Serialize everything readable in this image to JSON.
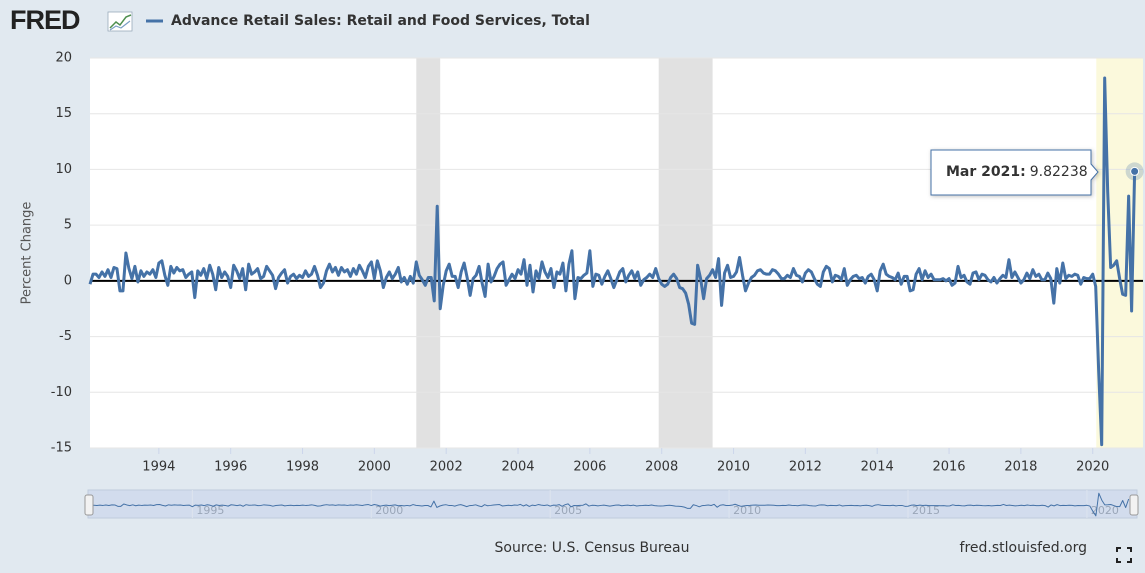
{
  "logo": "FRED",
  "chart_data": {
    "type": "line",
    "title": "Advance Retail Sales: Retail and Food Services, Total",
    "y_label": "Percent Change",
    "source": "Source: U.S. Census Bureau",
    "credit": "fred.stlouisfed.org",
    "annotation": {
      "text": "Mar 2021:",
      "point": 349
    },
    "xlim": [
      1992.083,
      2021.4
    ],
    "xticks": [
      1994,
      1996,
      1998,
      2000,
      2002,
      2004,
      2006,
      2008,
      2010,
      2012,
      2014,
      2016,
      2018,
      2020
    ],
    "ylim": [
      -15,
      20
    ],
    "yticks": [
      -15,
      -10,
      -5,
      0,
      5,
      10,
      15,
      20
    ],
    "grid": true,
    "recessions": [
      [
        2001.167,
        2001.833
      ],
      [
        2007.917,
        2009.417
      ]
    ],
    "highlight": [
      2020.1,
      2021.4
    ],
    "navigator_ticks": [
      1995,
      2000,
      2005,
      2010,
      2015,
      2020
    ],
    "x": [
      1992.083,
      1992.167,
      1992.25,
      1992.333,
      1992.417,
      1992.5,
      1992.583,
      1992.667,
      1992.75,
      1992.833,
      1992.917,
      1993,
      1993.083,
      1993.167,
      1993.25,
      1993.333,
      1993.417,
      1993.5,
      1993.583,
      1993.667,
      1993.75,
      1993.833,
      1993.917,
      1994,
      1994.083,
      1994.167,
      1994.25,
      1994.333,
      1994.417,
      1994.5,
      1994.583,
      1994.667,
      1994.75,
      1994.833,
      1994.917,
      1995,
      1995.083,
      1995.167,
      1995.25,
      1995.333,
      1995.417,
      1995.5,
      1995.583,
      1995.667,
      1995.75,
      1995.833,
      1995.917,
      1996,
      1996.083,
      1996.167,
      1996.25,
      1996.333,
      1996.417,
      1996.5,
      1996.583,
      1996.667,
      1996.75,
      1996.833,
      1996.917,
      1997,
      1997.083,
      1997.167,
      1997.25,
      1997.333,
      1997.417,
      1997.5,
      1997.583,
      1997.667,
      1997.75,
      1997.833,
      1997.917,
      1998,
      1998.083,
      1998.167,
      1998.25,
      1998.333,
      1998.417,
      1998.5,
      1998.583,
      1998.667,
      1998.75,
      1998.833,
      1998.917,
      1999,
      1999.083,
      1999.167,
      1999.25,
      1999.333,
      1999.417,
      1999.5,
      1999.583,
      1999.667,
      1999.75,
      1999.833,
      1999.917,
      2000,
      2000.083,
      2000.167,
      2000.25,
      2000.333,
      2000.417,
      2000.5,
      2000.583,
      2000.667,
      2000.75,
      2000.833,
      2000.917,
      2001,
      2001.083,
      2001.167,
      2001.25,
      2001.333,
      2001.417,
      2001.5,
      2001.583,
      2001.667,
      2001.75,
      2001.833,
      2001.917,
      2002,
      2002.083,
      2002.167,
      2002.25,
      2002.333,
      2002.417,
      2002.5,
      2002.583,
      2002.667,
      2002.75,
      2002.833,
      2002.917,
      2003,
      2003.083,
      2003.167,
      2003.25,
      2003.333,
      2003.417,
      2003.5,
      2003.583,
      2003.667,
      2003.75,
      2003.833,
      2003.917,
      2004,
      2004.083,
      2004.167,
      2004.25,
      2004.333,
      2004.417,
      2004.5,
      2004.583,
      2004.667,
      2004.75,
      2004.833,
      2004.917,
      2005,
      2005.083,
      2005.167,
      2005.25,
      2005.333,
      2005.417,
      2005.5,
      2005.583,
      2005.667,
      2005.75,
      2005.833,
      2005.917,
      2006,
      2006.083,
      2006.167,
      2006.25,
      2006.333,
      2006.417,
      2006.5,
      2006.583,
      2006.667,
      2006.75,
      2006.833,
      2006.917,
      2007,
      2007.083,
      2007.167,
      2007.25,
      2007.333,
      2007.417,
      2007.5,
      2007.583,
      2007.667,
      2007.75,
      2007.833,
      2007.917,
      2008,
      2008.083,
      2008.167,
      2008.25,
      2008.333,
      2008.417,
      2008.5,
      2008.583,
      2008.667,
      2008.75,
      2008.833,
      2008.917,
      2009,
      2009.083,
      2009.167,
      2009.25,
      2009.333,
      2009.417,
      2009.5,
      2009.583,
      2009.667,
      2009.75,
      2009.833,
      2009.917,
      2010,
      2010.083,
      2010.167,
      2010.25,
      2010.333,
      2010.417,
      2010.5,
      2010.583,
      2010.667,
      2010.75,
      2010.833,
      2010.917,
      2011,
      2011.083,
      2011.167,
      2011.25,
      2011.333,
      2011.417,
      2011.5,
      2011.583,
      2011.667,
      2011.75,
      2011.833,
      2011.917,
      2012,
      2012.083,
      2012.167,
      2012.25,
      2012.333,
      2012.417,
      2012.5,
      2012.583,
      2012.667,
      2012.75,
      2012.833,
      2012.917,
      2013,
      2013.083,
      2013.167,
      2013.25,
      2013.333,
      2013.417,
      2013.5,
      2013.583,
      2013.667,
      2013.75,
      2013.833,
      2013.917,
      2014,
      2014.083,
      2014.167,
      2014.25,
      2014.333,
      2014.417,
      2014.5,
      2014.583,
      2014.667,
      2014.75,
      2014.833,
      2014.917,
      2015,
      2015.083,
      2015.167,
      2015.25,
      2015.333,
      2015.417,
      2015.5,
      2015.583,
      2015.667,
      2015.75,
      2015.833,
      2015.917,
      2016,
      2016.083,
      2016.167,
      2016.25,
      2016.333,
      2016.417,
      2016.5,
      2016.583,
      2016.667,
      2016.75,
      2016.833,
      2016.917,
      2017,
      2017.083,
      2017.167,
      2017.25,
      2017.333,
      2017.417,
      2017.5,
      2017.583,
      2017.667,
      2017.75,
      2017.833,
      2017.917,
      2018,
      2018.083,
      2018.167,
      2018.25,
      2018.333,
      2018.417,
      2018.5,
      2018.583,
      2018.667,
      2018.75,
      2018.833,
      2018.917,
      2019,
      2019.083,
      2019.167,
      2019.25,
      2019.333,
      2019.417,
      2019.5,
      2019.583,
      2019.667,
      2019.75,
      2019.833,
      2019.917,
      2020,
      2020.083,
      2020.167,
      2020.25,
      2020.333,
      2020.417,
      2020.5,
      2020.583,
      2020.667,
      2020.75,
      2020.833,
      2020.917,
      2021,
      2021.083,
      2021.167
    ],
    "series": [
      {
        "name": "Advance Retail Sales: Retail and Food Services, Total",
        "color": "#4572a7",
        "values": [
          -0.3,
          0.6,
          0.6,
          0.3,
          0.8,
          0.4,
          1.0,
          0.3,
          1.2,
          1.1,
          -0.9,
          -0.9,
          2.5,
          1.1,
          0.2,
          1.3,
          -0.1,
          0.9,
          0.4,
          0.8,
          0.6,
          1.0,
          0.3,
          1.6,
          1.8,
          0.5,
          -0.4,
          1.3,
          0.7,
          1.2,
          0.9,
          1.0,
          0.3,
          0.6,
          0.8,
          -1.5,
          0.9,
          0.5,
          1.1,
          0.2,
          1.4,
          0.6,
          -0.8,
          1.2,
          0.3,
          0.8,
          0.4,
          -0.6,
          1.4,
          0.9,
          0.2,
          1.1,
          -0.8,
          1.5,
          0.6,
          0.8,
          1.1,
          0.2,
          0.4,
          1.3,
          0.9,
          0.5,
          -0.7,
          0.3,
          0.7,
          1.0,
          -0.2,
          0.4,
          0.6,
          0.2,
          0.5,
          0.3,
          0.9,
          0.4,
          0.6,
          1.3,
          0.5,
          -0.6,
          -0.2,
          0.9,
          1.5,
          0.8,
          1.2,
          0.5,
          1.2,
          0.8,
          1.0,
          0.4,
          1.1,
          0.6,
          1.4,
          0.9,
          0.3,
          1.3,
          1.7,
          0.2,
          1.8,
          0.9,
          -0.6,
          0.3,
          0.8,
          0.2,
          0.6,
          1.2,
          -0.1,
          0.3,
          -0.3,
          0.4,
          -0.2,
          1.7,
          0.5,
          0.1,
          -0.4,
          0.3,
          0.3,
          -1.8,
          6.7,
          -2.5,
          -0.4,
          0.9,
          1.5,
          0.4,
          0.4,
          -0.6,
          0.8,
          1.6,
          0.3,
          -1.3,
          0.2,
          0.5,
          1.3,
          -0.2,
          -1.4,
          1.5,
          -0.1,
          0.4,
          1.1,
          1.5,
          1.7,
          -0.4,
          0.1,
          0.6,
          0.2,
          1.0,
          0.6,
          1.9,
          -0.4,
          1.4,
          -1.0,
          0.9,
          0.2,
          1.7,
          0.8,
          0.3,
          1.1,
          -0.6,
          0.8,
          0.6,
          1.6,
          -0.9,
          1.5,
          2.7,
          -1.6,
          0.3,
          0.2,
          0.5,
          0.7,
          2.7,
          -0.5,
          0.6,
          0.5,
          -0.3,
          0.4,
          0.9,
          0.2,
          -0.6,
          0.1,
          0.8,
          1.1,
          -0.1,
          0.5,
          0.9,
          0.2,
          0.8,
          -0.4,
          0.1,
          0.3,
          0.6,
          0.3,
          1.1,
          0.2,
          -0.3,
          -0.5,
          -0.3,
          0.3,
          0.6,
          0.2,
          -0.6,
          -0.7,
          -1.1,
          -2.1,
          -3.8,
          -3.9,
          1.4,
          0.2,
          -1.6,
          0.2,
          0.5,
          1.0,
          0.3,
          2.0,
          -2.2,
          0.7,
          1.4,
          0.3,
          0.4,
          0.8,
          2.1,
          0.5,
          -0.9,
          -0.2,
          0.3,
          0.5,
          0.9,
          1.0,
          0.7,
          0.6,
          0.6,
          1.0,
          0.9,
          0.6,
          0.2,
          0.2,
          0.5,
          0.3,
          1.1,
          0.5,
          0.4,
          -0.1,
          0.7,
          1.0,
          0.8,
          0.2,
          -0.3,
          -0.5,
          0.8,
          1.3,
          1.1,
          -0.1,
          0.5,
          0.4,
          0.1,
          1.1,
          -0.4,
          0.1,
          0.4,
          0.5,
          0.2,
          0.3,
          -0.2,
          0.4,
          0.6,
          0.1,
          -0.9,
          0.9,
          1.5,
          0.6,
          0.4,
          0.3,
          0.1,
          0.7,
          -0.3,
          0.4,
          0.4,
          -0.9,
          -0.8,
          0.6,
          1.1,
          0.1,
          0.9,
          0.3,
          0.6,
          0.1,
          0.1,
          0.1,
          0.2,
          0.0,
          0.2,
          -0.4,
          -0.2,
          1.3,
          0.3,
          0.5,
          -0.1,
          -0.3,
          0.7,
          0.8,
          0.1,
          0.6,
          0.5,
          0.1,
          -0.1,
          0.3,
          -0.2,
          0.2,
          0.5,
          0.3,
          1.9,
          0.3,
          0.8,
          0.3,
          -0.2,
          0.1,
          0.7,
          0.2,
          1.0,
          0.4,
          0.6,
          0.1,
          0.1,
          0.7,
          0.2,
          -2.0,
          1.1,
          -0.2,
          1.6,
          0.2,
          0.5,
          0.4,
          0.6,
          0.5,
          -0.3,
          0.3,
          0.2,
          0.2,
          0.6,
          -0.5,
          -8.2,
          -14.7,
          18.2,
          8.0,
          1.2,
          1.4,
          1.8,
          0.2,
          -1.2,
          -1.3,
          7.6,
          -2.7,
          9.82238
        ]
      }
    ]
  }
}
